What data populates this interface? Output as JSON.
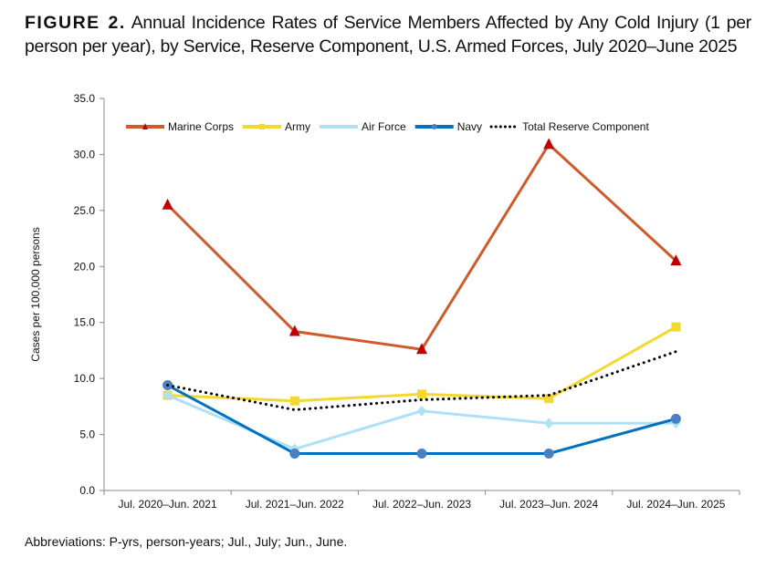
{
  "figure_label": "FIGURE 2.",
  "footnote": "Abbreviations: P-yrs, person-years; Jul., July; Jun., June.",
  "chart_data": {
    "type": "line",
    "title": "Annual Incidence Rates of Service Members Affected by Any Cold Injury (1 per person per year), by Service, Reserve Component, U.S. Armed Forces, July 2020–June 2025",
    "xlabel": "",
    "ylabel": "Cases per 100,000 persons",
    "ylim": [
      0,
      35
    ],
    "yticks": [
      "0.0",
      "5.0",
      "10.0",
      "15.0",
      "20.0",
      "25.0",
      "30.0",
      "35.0"
    ],
    "categories": [
      "Jul. 2020–Jun. 2021",
      "Jul. 2021–Jun. 2022",
      "Jul. 2022–Jun. 2023",
      "Jul. 2023–Jun. 2024",
      "Jul. 2024–Jun. 2025"
    ],
    "grid": false,
    "legend_position": "top",
    "series": [
      {
        "name": "Marine Corps",
        "values": [
          25.5,
          14.2,
          12.6,
          30.9,
          20.5
        ],
        "color": "#d05a2c",
        "marker": "triangle",
        "marker_color": "#c00000",
        "style": "solid"
      },
      {
        "name": "Army",
        "values": [
          8.5,
          8.0,
          8.6,
          8.2,
          14.6
        ],
        "color": "#f2d82f",
        "marker": "square",
        "marker_color": "#f2d82f",
        "style": "solid"
      },
      {
        "name": "Air Force",
        "values": [
          8.5,
          3.7,
          7.1,
          6.0,
          6.0
        ],
        "color": "#aee0f7",
        "marker": "diamond",
        "marker_color": "#aee0f7",
        "style": "solid"
      },
      {
        "name": "Navy",
        "values": [
          9.4,
          3.3,
          3.3,
          3.3,
          6.4
        ],
        "color": "#0070c0",
        "marker": "circle",
        "marker_color": "#4a7fc1",
        "style": "solid"
      },
      {
        "name": "Total Reserve Component",
        "values": [
          9.4,
          7.2,
          8.1,
          8.5,
          12.4
        ],
        "color": "#000000",
        "marker": "none",
        "style": "dotted"
      }
    ]
  }
}
